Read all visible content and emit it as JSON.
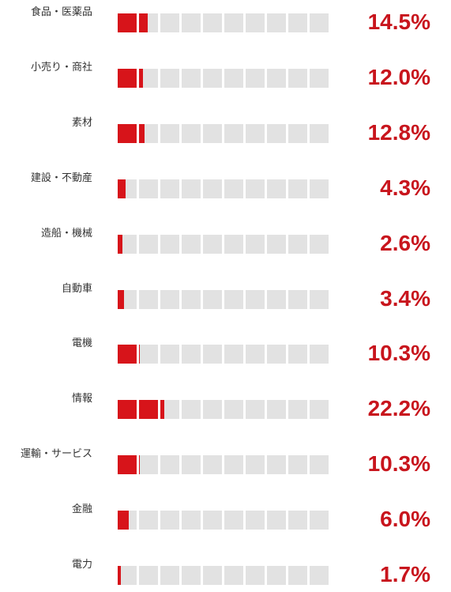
{
  "chart_data": {
    "type": "bar",
    "orientation": "horizontal",
    "unit": "%",
    "cells_per_bar": 10,
    "categories": [
      "食品・医薬品",
      "小売り・商社",
      "素材",
      "建設・不動産",
      "造船・機械",
      "自動車",
      "電機",
      "情報",
      "運輸・サービス",
      "金融",
      "電力"
    ],
    "values": [
      14.5,
      12.0,
      12.8,
      4.3,
      2.6,
      3.4,
      10.3,
      22.2,
      10.3,
      6.0,
      1.7
    ],
    "value_labels": [
      "14.5%",
      "12.0%",
      "12.8%",
      "4.3%",
      "2.6%",
      "3.4%",
      "10.3%",
      "22.2%",
      "10.3%",
      "6.0%",
      "1.7%"
    ]
  },
  "colors": {
    "fill": "#d7141a",
    "empty": "#e2e2e2",
    "value_text": "#c8151d",
    "label_text": "#333333"
  }
}
